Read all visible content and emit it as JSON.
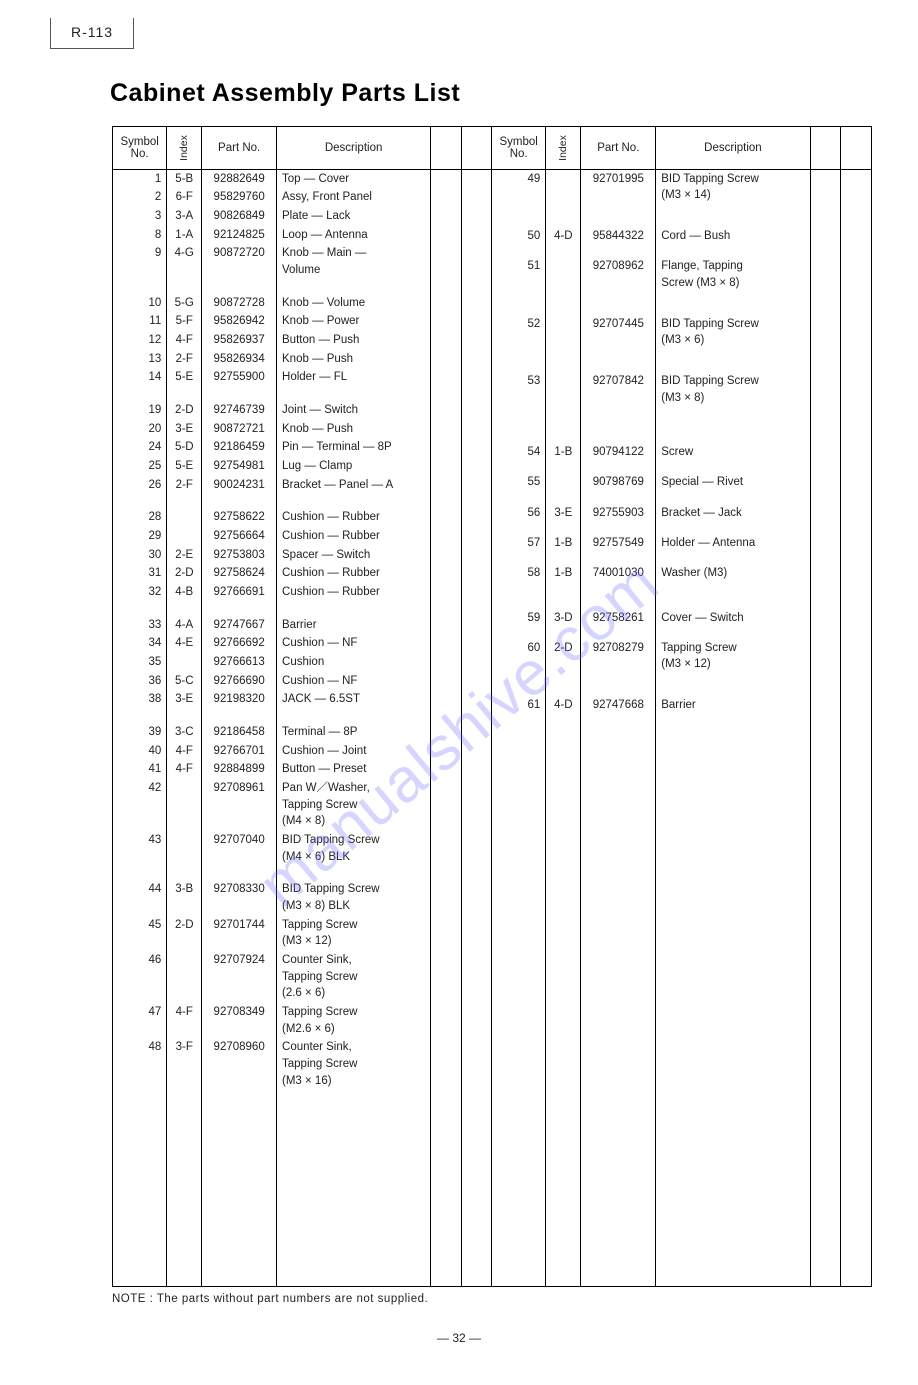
{
  "model_tag": "R-113",
  "title": "Cabinet Assembly Parts List",
  "headers": {
    "symbol": "Symbol\nNo.",
    "index": "Index",
    "part_no": "Part No.",
    "description": "Description"
  },
  "note": "NOTE :  The parts without part numbers are not supplied.",
  "page_number": "— 32 —",
  "watermark": "manualshive.com",
  "colors": {
    "text": "#222222",
    "border": "#000000",
    "background": "#ffffff",
    "watermark": "#6b6bff"
  },
  "fonts": {
    "title_size_pt": 19,
    "body_size_pt": 8.5,
    "family": "sans-serif"
  },
  "left_rows": [
    {
      "sym": "1",
      "idx": "5-B",
      "pn": "92882649",
      "desc": "Top — Cover"
    },
    {
      "sym": "2",
      "idx": "6-F",
      "pn": "95829760",
      "desc": "Assy, Front Panel"
    },
    {
      "sym": "3",
      "idx": "3-A",
      "pn": "90826849",
      "desc": "Plate — Lack"
    },
    {
      "sym": "8",
      "idx": "1-A",
      "pn": "92124825",
      "desc": "Loop — Antenna"
    },
    {
      "sym": "9",
      "idx": "4-G",
      "pn": "90872720",
      "desc": "Knob — Main —\nVolume"
    },
    {
      "spacer": true
    },
    {
      "sym": "10",
      "idx": "5-G",
      "pn": "90872728",
      "desc": "Knob — Volume"
    },
    {
      "sym": "11",
      "idx": "5-F",
      "pn": "95826942",
      "desc": "Knob — Power"
    },
    {
      "sym": "12",
      "idx": "4-F",
      "pn": "95826937",
      "desc": "Button — Push"
    },
    {
      "sym": "13",
      "idx": "2-F",
      "pn": "95826934",
      "desc": "Knob — Push"
    },
    {
      "sym": "14",
      "idx": "5-E",
      "pn": "92755900",
      "desc": "Holder — FL"
    },
    {
      "spacer": true
    },
    {
      "sym": "19",
      "idx": "2-D",
      "pn": "92746739",
      "desc": "Joint — Switch"
    },
    {
      "sym": "20",
      "idx": "3-E",
      "pn": "90872721",
      "desc": "Knob — Push"
    },
    {
      "sym": "24",
      "idx": "5-D",
      "pn": "92186459",
      "desc": "Pin — Terminal — 8P"
    },
    {
      "sym": "25",
      "idx": "5-E",
      "pn": "92754981",
      "desc": "Lug — Clamp"
    },
    {
      "sym": "26",
      "idx": "2-F",
      "pn": "90024231",
      "desc": "Bracket — Panel — A"
    },
    {
      "spacer": true
    },
    {
      "sym": "28",
      "idx": "",
      "pn": "92758622",
      "desc": "Cushion — Rubber"
    },
    {
      "sym": "29",
      "idx": "",
      "pn": "92756664",
      "desc": "Cushion — Rubber"
    },
    {
      "sym": "30",
      "idx": "2-E",
      "pn": "92753803",
      "desc": "Spacer — Switch"
    },
    {
      "sym": "31",
      "idx": "2-D",
      "pn": "92758624",
      "desc": "Cushion — Rubber"
    },
    {
      "sym": "32",
      "idx": "4-B",
      "pn": "92766691",
      "desc": "Cushion — Rubber"
    },
    {
      "spacer": true
    },
    {
      "sym": "33",
      "idx": "4-A",
      "pn": "92747667",
      "desc": "Barrier"
    },
    {
      "sym": "34",
      "idx": "4-E",
      "pn": "92766692",
      "desc": "Cushion — NF"
    },
    {
      "sym": "35",
      "idx": "",
      "pn": "92766613",
      "desc": "Cushion"
    },
    {
      "sym": "36",
      "idx": "5-C",
      "pn": "92766690",
      "desc": "Cushion — NF"
    },
    {
      "sym": "38",
      "idx": "3-E",
      "pn": "92198320",
      "desc": "JACK — 6.5ST"
    },
    {
      "spacer": true
    },
    {
      "sym": "39",
      "idx": "3-C",
      "pn": "92186458",
      "desc": "Terminal — 8P"
    },
    {
      "sym": "40",
      "idx": "4-F",
      "pn": "92766701",
      "desc": "Cushion — Joint"
    },
    {
      "sym": "41",
      "idx": "4-F",
      "pn": "92884899",
      "desc": "Button — Preset"
    },
    {
      "sym": "42",
      "idx": "",
      "pn": "92708961",
      "desc": "Pan W／Washer,\nTapping Screw\n(M4 × 8)"
    },
    {
      "sym": "43",
      "idx": "",
      "pn": "92707040",
      "desc": "BID Tapping Screw\n(M4 × 6) BLK"
    },
    {
      "spacer": true
    },
    {
      "sym": "44",
      "idx": "3-B",
      "pn": "92708330",
      "desc": "BID Tapping Screw\n(M3 × 8) BLK"
    },
    {
      "sym": "45",
      "idx": "2-D",
      "pn": "92701744",
      "desc": "Tapping Screw\n(M3 × 12)"
    },
    {
      "sym": "46",
      "idx": "",
      "pn": "92707924",
      "desc": "Counter Sink,\nTapping Screw\n(2.6 × 6)"
    },
    {
      "sym": "47",
      "idx": "4-F",
      "pn": "92708349",
      "desc": "Tapping Screw\n(M2.6 × 6)"
    },
    {
      "sym": "48",
      "idx": "3-F",
      "pn": "92708960",
      "desc": "Counter Sink,\nTapping Screw\n(M3 × 16)"
    }
  ],
  "right_rows": [
    {
      "sym": "49",
      "idx": "",
      "pn": "92701995",
      "desc": "BID Tapping Screw\n(M3 × 14)"
    },
    {
      "sym": "50",
      "idx": "4-D",
      "pn": "95844322",
      "desc": "Cord — Bush"
    },
    {
      "sym": "51",
      "idx": "",
      "pn": "92708962",
      "desc": "Flange, Tapping\nScrew (M3 × 8)"
    },
    {
      "sym": "52",
      "idx": "",
      "pn": "92707445",
      "desc": "BID Tapping Screw\n(M3 × 6)"
    },
    {
      "sym": "53",
      "idx": "",
      "pn": "92707842",
      "desc": "BID Tapping Screw\n(M3 × 8)"
    },
    {
      "spacer": true
    },
    {
      "sym": "54",
      "idx": "1-B",
      "pn": "90794122",
      "desc": "Screw"
    },
    {
      "sym": "55",
      "idx": "",
      "pn": "90798769",
      "desc": "Special — Rivet"
    },
    {
      "sym": "56",
      "idx": "3-E",
      "pn": "92755903",
      "desc": "Bracket — Jack"
    },
    {
      "sym": "57",
      "idx": "1-B",
      "pn": "92757549",
      "desc": "Holder — Antenna"
    },
    {
      "sym": "58",
      "idx": "1-B",
      "pn": "74001030",
      "desc": "Washer (M3)"
    },
    {
      "spacer": true
    },
    {
      "sym": "59",
      "idx": "3-D",
      "pn": "92758261",
      "desc": "Cover — Switch"
    },
    {
      "sym": "60",
      "idx": "2-D",
      "pn": "92708279",
      "desc": "Tapping Screw\n(M3 × 12)"
    },
    {
      "sym": "61",
      "idx": "4-D",
      "pn": "92747668",
      "desc": "Barrier"
    }
  ]
}
